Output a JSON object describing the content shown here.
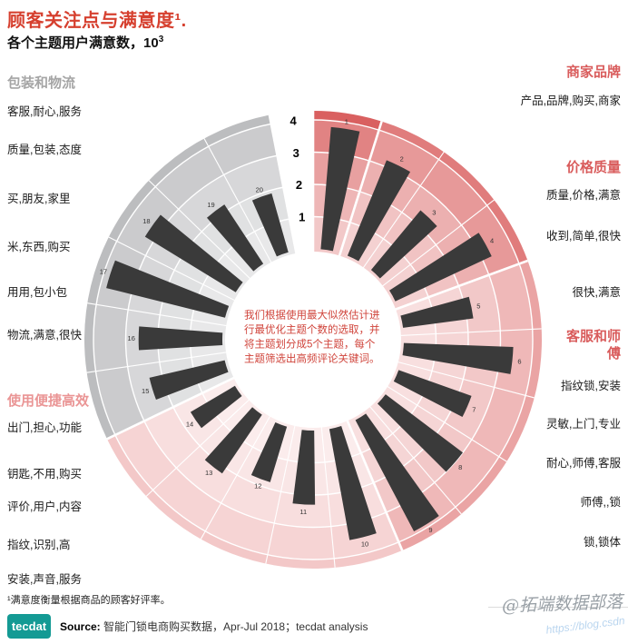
{
  "header": {
    "title": "顾客关注点与满意度¹.",
    "subtitle_prefix": "各个主题用户满意数，10",
    "subtitle_sup": "3"
  },
  "colors": {
    "accent_red": "#d6402f",
    "red_header": "#d95c5c",
    "pink_header": "#ea9595",
    "gray_header": "#a5a5a5",
    "bar": "#3a3a3a",
    "logo_teal": "#149a94"
  },
  "labels": {
    "left": [
      {
        "kind": "gray-header",
        "text": "包装和物流"
      },
      {
        "kind": "item",
        "text": "客服,耐心,服务"
      },
      {
        "kind": "item",
        "text": "质量,包装,态度"
      },
      {
        "kind": "item",
        "text": "买,朋友,家里"
      },
      {
        "kind": "item",
        "text": "米,东西,购买"
      },
      {
        "kind": "item",
        "text": "用用,包小包"
      },
      {
        "kind": "item",
        "text": "物流,满意,很快"
      },
      {
        "kind": "pink-header",
        "text": "使用便捷高效"
      },
      {
        "kind": "item",
        "text": "出门,担心,功能"
      },
      {
        "kind": "item",
        "text": "钥匙,不用,购买"
      },
      {
        "kind": "item",
        "text": "评价,用户,内容"
      },
      {
        "kind": "item",
        "text": "指纹,识别,高"
      },
      {
        "kind": "item",
        "text": "安装,声音,服务"
      }
    ],
    "right": [
      {
        "kind": "red-header",
        "text": "商家品牌"
      },
      {
        "kind": "item",
        "text": "产品,品牌,购买,商家"
      },
      {
        "kind": "red-header",
        "text": "价格质量"
      },
      {
        "kind": "item",
        "text": "质量,价格,满意"
      },
      {
        "kind": "item",
        "text": "收到,简单,很快"
      },
      {
        "kind": "item",
        "text": "很快,满意"
      },
      {
        "kind": "red-header",
        "text": "客服和师傅",
        "wrap": true
      },
      {
        "kind": "item",
        "text": "指纹锁,安装"
      },
      {
        "kind": "item",
        "text": "灵敏,上门,专业"
      },
      {
        "kind": "item",
        "text": "耐心,师傅,客服"
      },
      {
        "kind": "item",
        "text": "师傅,,锁"
      },
      {
        "kind": "item",
        "text": "锁,锁体"
      }
    ]
  },
  "chart_data": {
    "type": "bar",
    "variant": "radial-circular",
    "title": "各个主题用户满意数，10³",
    "unit": "10³ 满意用户数",
    "ylim": [
      0,
      4
    ],
    "radial_axis": {
      "ticks": [
        1,
        2,
        3,
        4
      ]
    },
    "center_note": "我们根据使用最大似然估计进行最优化主题个数的选取，并将主题划分成5个主题，每个主题筛选出高频评论关键词。",
    "bar_tip_labels": "topic index 1-20, clockwise from top",
    "sectors": [
      {
        "name": "商家品牌",
        "color": "#d96060",
        "topics": [
          {
            "index": 1,
            "label": "产品,品牌,购买,商家",
            "value": 3.8
          }
        ]
      },
      {
        "name": "价格质量",
        "color": "#e07c7c",
        "topics": [
          {
            "index": 2,
            "label": "质量,价格,满意",
            "value": 3.2
          },
          {
            "index": 3,
            "label": "收到,简单,很快",
            "value": 2.4
          },
          {
            "index": 4,
            "label": "很快,满意",
            "value": 3.3
          }
        ]
      },
      {
        "name": "客服和师傅",
        "color": "#eaa4a4",
        "topics": [
          {
            "index": 5,
            "label": "指纹锁,安装",
            "value": 2.2
          },
          {
            "index": 6,
            "label": "灵敏,上门,专业",
            "value": 3.4
          },
          {
            "index": 7,
            "label": "耐心,师傅,客服",
            "value": 2.4
          },
          {
            "index": 8,
            "label": "师傅,,锁",
            "value": 3.0
          },
          {
            "index": 9,
            "label": "锁,锁体",
            "value": 3.9
          }
        ]
      },
      {
        "name": "使用便捷高效",
        "color": "#f3c8c8",
        "topics": [
          {
            "index": 10,
            "label": "安装,声音,服务",
            "value": 3.5
          },
          {
            "index": 11,
            "label": "指纹,识别,高",
            "value": 2.3
          },
          {
            "index": 12,
            "label": "评价,用户,内容",
            "value": 1.8
          },
          {
            "index": 13,
            "label": "钥匙,不用,购买",
            "value": 2.2
          },
          {
            "index": 14,
            "label": "出门,担心,功能",
            "value": 1.6
          }
        ]
      },
      {
        "name": "包装和物流",
        "color": "#bcbdbf",
        "topics": [
          {
            "index": 15,
            "label": "物流,满意,很快",
            "value": 2.4
          },
          {
            "index": 16,
            "label": "用用,包小包",
            "value": 2.6
          },
          {
            "index": 17,
            "label": "米,东西,购买",
            "value": 3.8
          },
          {
            "index": 18,
            "label": "买,朋友,家里",
            "value": 3.3
          },
          {
            "index": 19,
            "label": "质量,包装,态度",
            "value": 2.2
          },
          {
            "index": 20,
            "label": "客服,耐心,服务",
            "value": 1.9
          }
        ]
      }
    ]
  },
  "footer": {
    "footnote": "¹满意度衡量根据商品的顾客好评率。",
    "logo": "tecdat",
    "source_label": "Source:",
    "source_text": "智能门锁电商购买数据，Apr-Jul 2018；tecdat analysis"
  },
  "watermark": {
    "signature": "@拓端数据部落",
    "url": "https://blog.csdn"
  }
}
